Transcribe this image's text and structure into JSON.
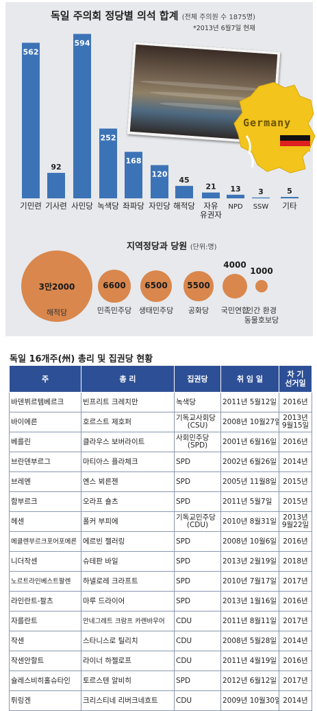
{
  "chart_data": [
    {
      "type": "bar",
      "title": "독일 주의회 정당별 의석 합계",
      "title_note": "(전체 주의원 수 1875명)",
      "note": "*2013년 6월7일 현재",
      "categories": [
        "기민련",
        "기사련",
        "사민당",
        "녹색당",
        "좌파당",
        "자민당",
        "해적당",
        "자유 유권자",
        "NPD",
        "SSW",
        "기타"
      ],
      "values": [
        562,
        92,
        594,
        252,
        168,
        120,
        45,
        21,
        13,
        3,
        5
      ],
      "ylim": [
        0,
        600
      ],
      "bar_color": "#3c73b6"
    },
    {
      "type": "bubble",
      "title": "지역정당과 당원",
      "unit_note": "(단위:명)",
      "categories": [
        "해적당",
        "민족민주당",
        "생태민주당",
        "공화당",
        "국민연합",
        "인간 환경 동물호보당"
      ],
      "value_labels": [
        "3만2000",
        "6600",
        "6500",
        "5500",
        "4000",
        "1000"
      ],
      "values": [
        32000,
        6600,
        6500,
        5500,
        4000,
        1000
      ],
      "bubble_color": "#d9874c"
    }
  ],
  "badge": {
    "text": "Germany"
  },
  "flag_colors": [
    "#111111",
    "#dd2020",
    "#f3c21a"
  ],
  "table": {
    "title": "독일 16개주(州) 총리 및 집권당 현황",
    "headers": [
      "주",
      "총 리",
      "집권당",
      "취 임 일",
      "차 기 선거일"
    ],
    "rows": [
      [
        "바덴뷔르템베르크",
        "빈프리트 크레치만",
        "녹색당",
        "2011년 5월12일",
        "2016년"
      ],
      [
        "바이에른",
        "호르스트 제호퍼",
        "기독교사회당 (CSU)",
        "2008년 10월27일",
        "2013년 9월15일"
      ],
      [
        "베를린",
        "클라우스 보버라이트",
        "사회민주당 (SPD)",
        "2001년 6월16일",
        "2016년"
      ],
      [
        "브란덴부르그",
        "마티아스 플라체크",
        "SPD",
        "2002년 6월26일",
        "2014년"
      ],
      [
        "브레멘",
        "옌스 뵈른젠",
        "SPD",
        "2005년 11월8일",
        "2015년"
      ],
      [
        "함부르크",
        "오라프 숄츠",
        "SPD",
        "2011년 5월7일",
        "2015년"
      ],
      [
        "헤센",
        "폴커 부피에",
        "기독교민주당 (CDU)",
        "2010년 8월31일",
        "2013년 9월22일"
      ],
      [
        "메클렌부르크포어포메른",
        "에르빈 젤러링",
        "SPD",
        "2008년 10월6일",
        "2016년"
      ],
      [
        "니더작센",
        "슈테판 바일",
        "SPD",
        "2013년 2월19일",
        "2018년"
      ],
      [
        "노르트라인베스트팔렌",
        "하넬로레 크라프트",
        "SPD",
        "2010년 7월17일",
        "2017년"
      ],
      [
        "라인란트-팔츠",
        "마루 드라이어",
        "SPD",
        "2013년 1월16일",
        "2016년"
      ],
      [
        "자를란트",
        "안네그레트 크람프 카렌바우어",
        "CDU",
        "2011년 8월11일",
        "2017년"
      ],
      [
        "작센",
        "스타니스로 틸리치",
        "CDU",
        "2008년 5월28일",
        "2014년"
      ],
      [
        "작센안할트",
        "라이너 하젤로프",
        "CDU",
        "2011년 4월19일",
        "2016년"
      ],
      [
        "슐레스비히홀슈타인",
        "토르스텐 알비히",
        "SPD",
        "2012년 6월12일",
        "2017년"
      ],
      [
        "튀링겐",
        "크리스티네 리버크네흐트",
        "CDU",
        "2009년 10월30일",
        "2014년"
      ]
    ]
  }
}
